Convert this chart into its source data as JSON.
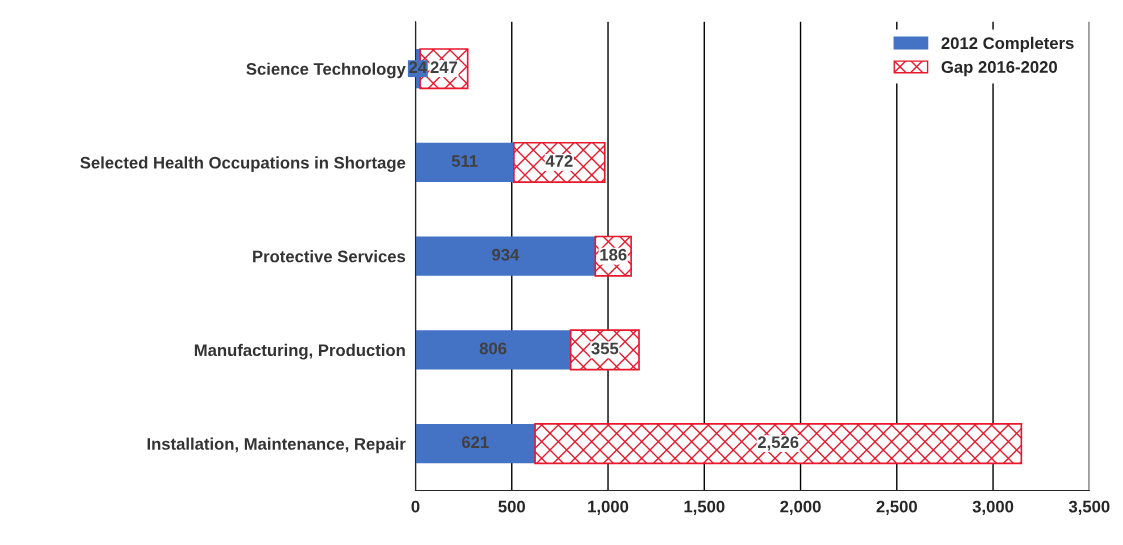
{
  "chart_data": {
    "type": "bar",
    "orientation": "horizontal",
    "stacked": true,
    "categories": [
      "Science Technology",
      "Selected Health Occupations in Shortage",
      "Protective Services",
      "Manufacturing, Production",
      "Installation, Maintenance, Repair"
    ],
    "series": [
      {
        "name": "2012 Completers",
        "color": "#4472c4",
        "values": [
          24,
          511,
          934,
          806,
          621
        ],
        "value_labels": [
          "24",
          "511",
          "934",
          "806",
          "621"
        ]
      },
      {
        "name": "Gap 2016-2020",
        "color": "#e8192c",
        "values": [
          247,
          472,
          186,
          355,
          2526
        ],
        "value_labels": [
          "247",
          "472",
          "186",
          "355",
          "2,526"
        ]
      }
    ],
    "xlim": [
      0,
      3500
    ],
    "xticks": [
      {
        "value": 0,
        "label": "0"
      },
      {
        "value": 500,
        "label": "500"
      },
      {
        "value": 1000,
        "label": "1,000"
      },
      {
        "value": 1500,
        "label": "1,500"
      },
      {
        "value": 2000,
        "label": "2,000"
      },
      {
        "value": 2500,
        "label": "2,500"
      },
      {
        "value": 3000,
        "label": "3,000"
      },
      {
        "value": 3500,
        "label": "3,500"
      }
    ],
    "grid": "x",
    "legend": "top right"
  }
}
